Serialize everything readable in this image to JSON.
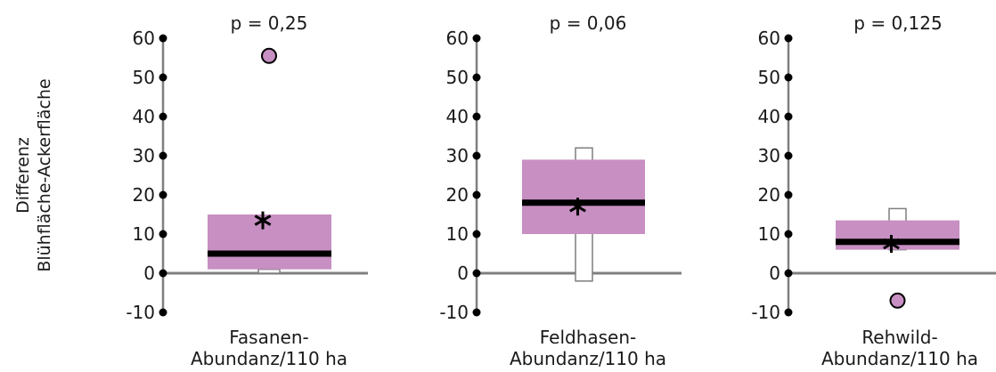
{
  "ylabel": [
    "Differenz",
    "Blühfläche-Ackerfläche"
  ],
  "colors": {
    "box_fill": "#c78fc2",
    "median": "#000000",
    "axis": "#7f7f7f",
    "whisker_box_stroke": "#7f7f7f",
    "outlier_fill": "#c78fc2",
    "tick_dot": "#000000"
  },
  "chart_data": [
    {
      "type": "box",
      "title": "p = 0,25",
      "xlabel": [
        "Fasanen-",
        "Abundanz/110 ha"
      ],
      "ylim": [
        -10,
        60
      ],
      "yticks": [
        -10,
        0,
        10,
        20,
        30,
        40,
        50,
        60
      ],
      "ytick_labels": [
        "-10",
        "0",
        "10",
        "20",
        "30",
        "40",
        "50",
        "60"
      ],
      "q1": 1,
      "q3": 15,
      "median": 5,
      "mean": 13.5,
      "range_min": 0,
      "range_max": 1,
      "outliers": [
        55.5
      ]
    },
    {
      "type": "box",
      "title": "p = 0,06",
      "xlabel": [
        "Feldhasen-",
        "Abundanz/110 ha"
      ],
      "ylim": [
        -10,
        60
      ],
      "yticks": [
        -10,
        0,
        10,
        20,
        30,
        40,
        50,
        60
      ],
      "ytick_labels": [
        "-10",
        "0",
        "10",
        "20",
        "30",
        "40",
        "50",
        "60"
      ],
      "q1": 10,
      "q3": 29,
      "median": 18,
      "mean": 17,
      "range_min": -2,
      "range_max": 32,
      "outliers": []
    },
    {
      "type": "box",
      "title": "p = 0,125",
      "xlabel": [
        "Rehwild-",
        "Abundanz/110 ha"
      ],
      "ylim": [
        -10,
        60
      ],
      "yticks": [
        -10,
        0,
        10,
        20,
        30,
        40,
        50,
        60
      ],
      "ytick_labels": [
        "-10",
        "0",
        "10",
        "20",
        "30",
        "40",
        "50",
        "60"
      ],
      "q1": 6,
      "q3": 13.5,
      "median": 8,
      "mean": 7.5,
      "range_min": 6,
      "range_max": 16.5,
      "outliers": [
        -7
      ]
    }
  ]
}
